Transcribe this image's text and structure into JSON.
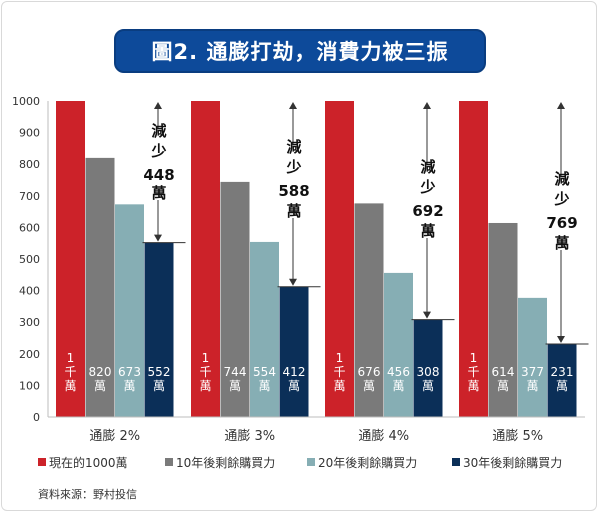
{
  "title": "圖2. 通膨打劫，消費力被三振",
  "source": "資料來源：野村投信",
  "colors": {
    "title_bg": "#0d4a9a",
    "red": "#cc2229",
    "gray": "#7a7a7a",
    "teal": "#86aeb4",
    "navy": "#0b2f58"
  },
  "chart_data": {
    "type": "bar",
    "title": "圖2. 通膨打劫，消費力被三振",
    "categories": [
      "通膨 2%",
      "通膨 3%",
      "通膨 4%",
      "通膨 5%"
    ],
    "ylim": [
      0,
      1000
    ],
    "yticks": [
      "0",
      "100",
      "200",
      "300",
      "400",
      "500",
      "600",
      "700",
      "800",
      "900",
      "1000"
    ],
    "series": [
      {
        "name": "現在的1000萬",
        "values": [
          1000,
          1000,
          1000,
          1000
        ],
        "labels": [
          "1千萬",
          "1千萬",
          "1千萬",
          "1千萬"
        ]
      },
      {
        "name": "10年後剩餘購買力",
        "values": [
          820,
          744,
          676,
          614
        ],
        "labels": [
          "820萬",
          "744萬",
          "676萬",
          "614萬"
        ]
      },
      {
        "name": "20年後剩餘購買力",
        "values": [
          673,
          554,
          456,
          377
        ],
        "labels": [
          "673萬",
          "554萬",
          "456萬",
          "377萬"
        ]
      },
      {
        "name": "30年後剩餘購買力",
        "values": [
          552,
          412,
          308,
          231
        ],
        "labels": [
          "552萬",
          "412萬",
          "308萬",
          "231萬"
        ]
      }
    ],
    "annotations": [
      {
        "top": "減少",
        "amount": "448",
        "unit": "萬"
      },
      {
        "top": "減少",
        "amount": "588",
        "unit": "萬"
      },
      {
        "top": "減少",
        "amount": "692",
        "unit": "萬"
      },
      {
        "top": "減少",
        "amount": "769",
        "unit": "萬"
      }
    ],
    "legend_position": "bottom"
  }
}
